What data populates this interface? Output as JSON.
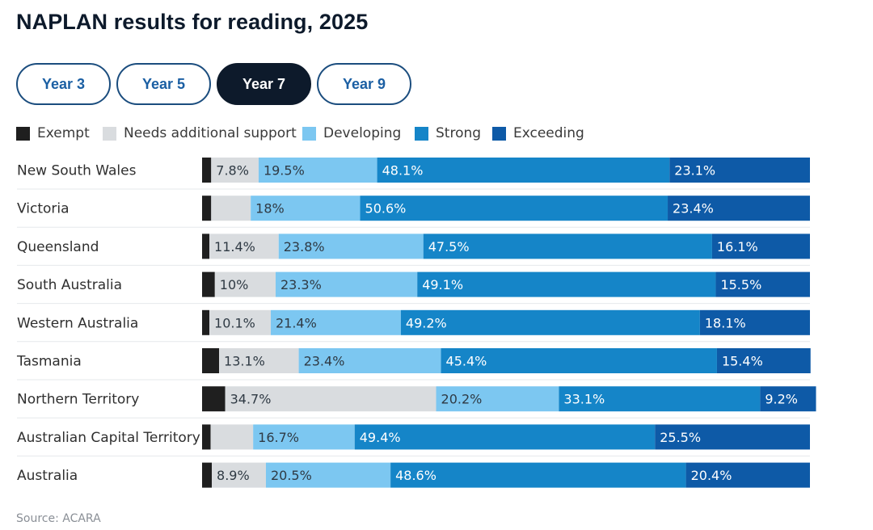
{
  "title": "NAPLAN results for reading, 2025",
  "tabs": [
    {
      "label": "Year 3",
      "active": false
    },
    {
      "label": "Year 5",
      "active": false
    },
    {
      "label": "Year 7",
      "active": true
    },
    {
      "label": "Year 9",
      "active": false
    }
  ],
  "source": "Source: ACARA",
  "colors": {
    "exempt": "#1f1f1f",
    "needs_support": "#d9dcdf",
    "developing": "#7cc7f1",
    "strong": "#1585c8",
    "exceeding": "#0e5aa7",
    "title": "#0d1a2b",
    "tab_active": "#0d1a2b",
    "tab_text": "#1b5fa3"
  },
  "chart_data": {
    "type": "bar",
    "orientation": "horizontal",
    "stacked": true,
    "legend_position": "top-left",
    "categories": [
      "New South Wales",
      "Victoria",
      "Queensland",
      "South Australia",
      "Western Australia",
      "Tasmania",
      "Northern Territory",
      "Australian Capital Territory",
      "Australia"
    ],
    "series": [
      {
        "name": "Exempt",
        "color": "#1f1f1f",
        "values": [
          1.5,
          1.5,
          1.2,
          2.1,
          1.2,
          2.8,
          3.8,
          1.4,
          1.6
        ],
        "labels": [
          "",
          "",
          "",
          "",
          "",
          "",
          "",
          "",
          ""
        ]
      },
      {
        "name": "Needs additional support",
        "color": "#d9dcdf",
        "values": [
          7.8,
          6.5,
          11.4,
          10,
          10.1,
          13.1,
          34.7,
          7.0,
          8.9
        ],
        "labels": [
          "7.8%",
          "",
          "11.4%",
          "10%",
          "10.1%",
          "13.1%",
          "34.7%",
          "",
          "8.9%"
        ]
      },
      {
        "name": "Developing",
        "color": "#7cc7f1",
        "values": [
          19.5,
          18,
          23.8,
          23.3,
          21.4,
          23.4,
          20.2,
          16.7,
          20.5
        ],
        "labels": [
          "19.5%",
          "18%",
          "23.8%",
          "23.3%",
          "21.4%",
          "23.4%",
          "20.2%",
          "16.7%",
          "20.5%"
        ]
      },
      {
        "name": "Strong",
        "color": "#1585c8",
        "values": [
          48.1,
          50.6,
          47.5,
          49.1,
          49.2,
          45.4,
          33.1,
          49.4,
          48.6
        ],
        "labels": [
          "48.1%",
          "50.6%",
          "47.5%",
          "49.1%",
          "49.2%",
          "45.4%",
          "33.1%",
          "49.4%",
          "48.6%"
        ]
      },
      {
        "name": "Exceeding",
        "color": "#0e5aa7",
        "values": [
          23.1,
          23.4,
          16.1,
          15.5,
          18.1,
          15.4,
          9.2,
          25.5,
          20.4
        ],
        "labels": [
          "23.1%",
          "23.4%",
          "16.1%",
          "15.5%",
          "18.1%",
          "15.4%",
          "9.2%",
          "25.5%",
          "20.4%"
        ]
      }
    ],
    "xlim": [
      0,
      100
    ],
    "grid": false
  }
}
